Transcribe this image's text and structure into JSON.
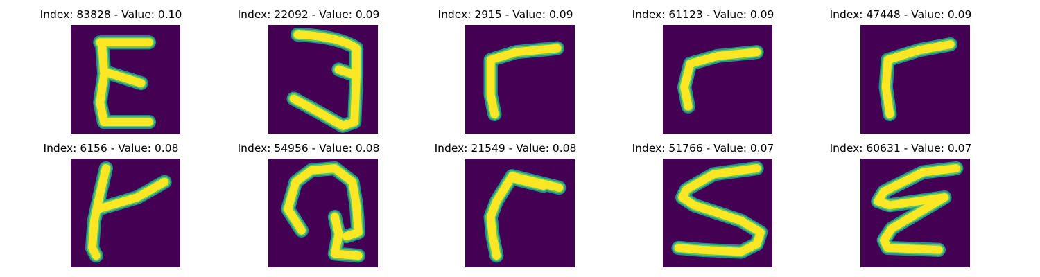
{
  "panels": [
    {
      "title": "Index: 83828 - Value: 0.10",
      "index": 83828,
      "value": 0.1,
      "glyph": "epsilon-shape-icon"
    },
    {
      "title": "Index: 22092 - Value: 0.09",
      "index": 22092,
      "value": 0.09,
      "glyph": "three-shape-icon"
    },
    {
      "title": "Index: 2915 - Value: 0.09",
      "index": 2915,
      "value": 0.09,
      "glyph": "corner-shape-icon"
    },
    {
      "title": "Index: 61123 - Value: 0.09",
      "index": 61123,
      "value": 0.09,
      "glyph": "corner-shape-icon"
    },
    {
      "title": "Index: 47448 - Value: 0.09",
      "index": 47448,
      "value": 0.09,
      "glyph": "corner-shape-icon"
    },
    {
      "title": "Index: 6156 - Value: 0.08",
      "index": 6156,
      "value": 0.08,
      "glyph": "k-shape-icon"
    },
    {
      "title": "Index: 54956 - Value: 0.08",
      "index": 54956,
      "value": 0.08,
      "glyph": "loop-shape-icon"
    },
    {
      "title": "Index: 21549 - Value: 0.08",
      "index": 21549,
      "value": 0.08,
      "glyph": "corner-shape-icon"
    },
    {
      "title": "Index: 51766 - Value: 0.07",
      "index": 51766,
      "value": 0.07,
      "glyph": "five-shape-icon"
    },
    {
      "title": "Index: 60631 - Value: 0.07",
      "index": 60631,
      "value": 0.07,
      "glyph": "epsilon-shape-icon"
    }
  ],
  "colors": {
    "background": "#440154",
    "stroke_outer": "#21918c",
    "stroke_mid": "#5ec962",
    "stroke_core": "#fde725"
  }
}
